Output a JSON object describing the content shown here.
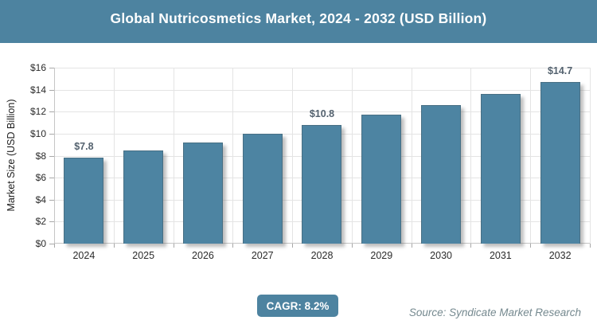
{
  "header": {
    "title": "Global Nutricosmetics Market, 2024 - 2032 (USD Billion)"
  },
  "chart_data": {
    "type": "bar",
    "title": "Global Nutricosmetics Market, 2024 - 2032 (USD Billion)",
    "categories": [
      "2024",
      "2025",
      "2026",
      "2027",
      "2028",
      "2029",
      "2030",
      "2031",
      "2032"
    ],
    "values": [
      7.8,
      8.5,
      9.2,
      10.0,
      10.8,
      11.7,
      12.6,
      13.6,
      14.7
    ],
    "data_labels": {
      "2024": "$7.8",
      "2028": "$10.8",
      "2032": "$14.7"
    },
    "xlabel": "",
    "ylabel": "Market Size (USD Billion)",
    "ylim": [
      0,
      16
    ],
    "ytick_step": 2,
    "ytick_labels": [
      "$0",
      "$2",
      "$4",
      "$6",
      "$8",
      "$10",
      "$12",
      "$14",
      "$16"
    ],
    "grid": true,
    "legend": false
  },
  "footer": {
    "cagr_label": "CAGR: 8.2%",
    "source": "Source: Syndicate Market Research"
  },
  "colors": {
    "header_bg": "#4D83A0",
    "bar_fill": "#4D84A2",
    "badge_bg": "#4D83A0",
    "data_label": "#54626F",
    "source_text": "#75898F",
    "axis_text": "#2B2B2B",
    "grid_line": "#E4E4E4"
  }
}
